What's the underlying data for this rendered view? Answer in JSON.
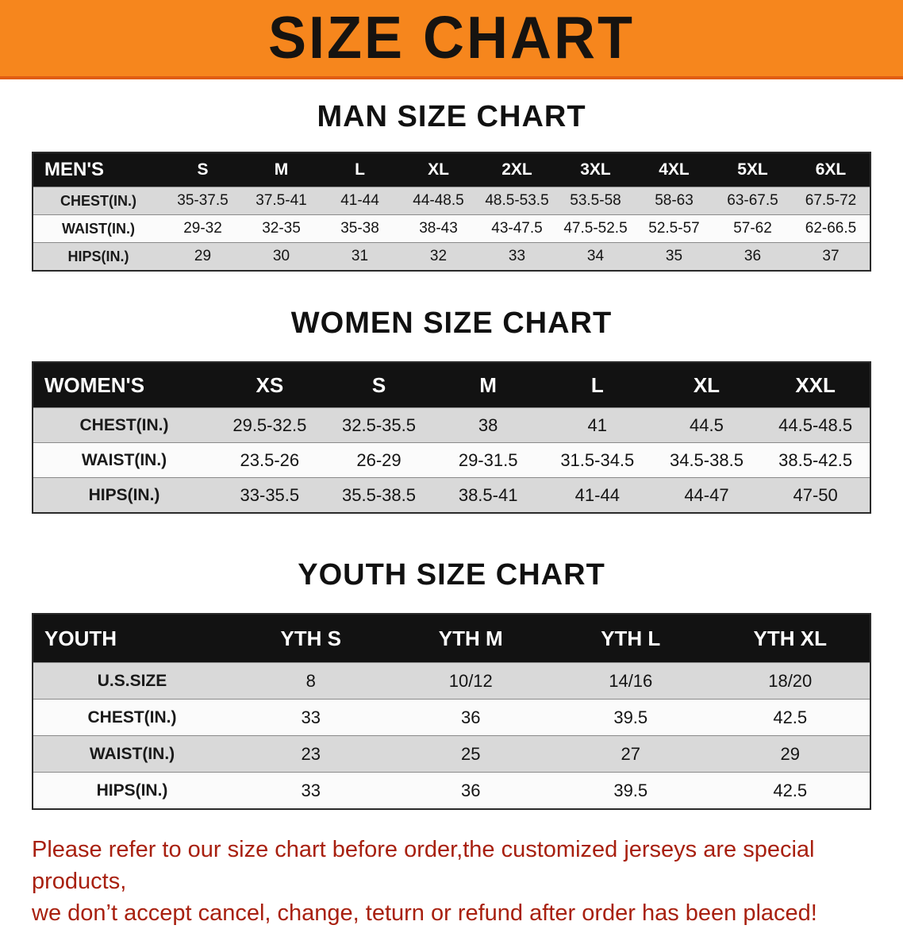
{
  "banner": {
    "title": "SIZE CHART",
    "background_color": "#f6861d",
    "text_color": "#161310"
  },
  "colors": {
    "table_header_bg": "#121212",
    "table_header_text": "#ffffff",
    "row_stripe_gray": "#d9d9d9",
    "notice_red": "#a8200f"
  },
  "sections": [
    {
      "heading": "MAN SIZE CHART",
      "table": {
        "header_label": "MEN'S",
        "columns": [
          "S",
          "M",
          "L",
          "XL",
          "2XL",
          "3XL",
          "4XL",
          "5XL",
          "6XL"
        ],
        "rows": [
          {
            "label": "CHEST(IN.)",
            "values": [
              "35-37.5",
              "37.5-41",
              "41-44",
              "44-48.5",
              "48.5-53.5",
              "53.5-58",
              "58-63",
              "63-67.5",
              "67.5-72"
            ]
          },
          {
            "label": "WAIST(IN.)",
            "values": [
              "29-32",
              "32-35",
              "35-38",
              "38-43",
              "43-47.5",
              "47.5-52.5",
              "52.5-57",
              "57-62",
              "62-66.5"
            ]
          },
          {
            "label": "HIPS(IN.)",
            "values": [
              "29",
              "30",
              "31",
              "32",
              "33",
              "34",
              "35",
              "36",
              "37"
            ]
          }
        ]
      }
    },
    {
      "heading": "WOMEN SIZE CHART",
      "table": {
        "header_label": "WOMEN'S",
        "columns": [
          "XS",
          "S",
          "M",
          "L",
          "XL",
          "XXL"
        ],
        "rows": [
          {
            "label": "CHEST(IN.)",
            "values": [
              "29.5-32.5",
              "32.5-35.5",
              "38",
              "41",
              "44.5",
              "44.5-48.5"
            ]
          },
          {
            "label": "WAIST(IN.)",
            "values": [
              "23.5-26",
              "26-29",
              "29-31.5",
              "31.5-34.5",
              "34.5-38.5",
              "38.5-42.5"
            ]
          },
          {
            "label": "HIPS(IN.)",
            "values": [
              "33-35.5",
              "35.5-38.5",
              "38.5-41",
              "41-44",
              "44-47",
              "47-50"
            ]
          }
        ]
      }
    },
    {
      "heading": "YOUTH SIZE CHART",
      "table": {
        "header_label": "YOUTH",
        "columns": [
          "YTH S",
          "YTH M",
          "YTH L",
          "YTH XL"
        ],
        "rows": [
          {
            "label": "U.S.SIZE",
            "values": [
              "8",
              "10/12",
              "14/16",
              "18/20"
            ]
          },
          {
            "label": "CHEST(IN.)",
            "values": [
              "33",
              "36",
              "39.5",
              "42.5"
            ]
          },
          {
            "label": "WAIST(IN.)",
            "values": [
              "23",
              "25",
              "27",
              "29"
            ]
          },
          {
            "label": "HIPS(IN.)",
            "values": [
              "33",
              "36",
              "39.5",
              "42.5"
            ]
          }
        ]
      }
    }
  ],
  "notice": {
    "line1": "Please refer to our size chart before order,the customized jerseys are special products,",
    "line2": "we don’t accept cancel, change, teturn or refund after order has been placed!"
  }
}
